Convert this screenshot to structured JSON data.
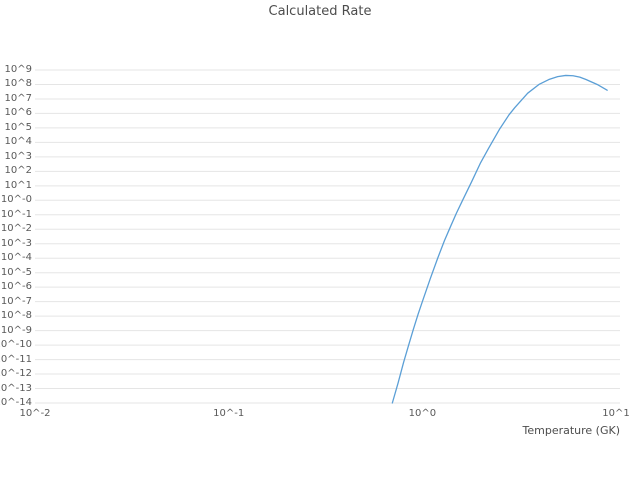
{
  "title": "Calculated Rate",
  "colors": {
    "line": "#5b9fd6",
    "grid": "#e5e5e5",
    "text": "#595959",
    "background": "#ffffff"
  },
  "chart_data": {
    "type": "line",
    "title": "Calculated Rate",
    "xlabel": "Temperature (GK)",
    "ylabel": "",
    "x_scale": "log",
    "y_scale": "log",
    "xlim": [
      0.01,
      10
    ],
    "ylim": [
      1e-14,
      1000000000.0
    ],
    "grid": "horizontal",
    "legend": "none",
    "x_tick_labels": [
      "10^-2",
      "10^-1",
      "10^0",
      "10^1"
    ],
    "y_tick_labels": [
      "10^9",
      "10^8",
      "10^7",
      "10^6",
      "10^5",
      "10^4",
      "10^3",
      "10^2",
      "10^1",
      "10^-0",
      "10^-1",
      "10^-2",
      "10^-3",
      "10^-4",
      "10^-5",
      "10^-6",
      "10^-7",
      "10^-8",
      "10^-9",
      "10^-10",
      "10^-11",
      "10^-12",
      "10^-13",
      "10^-14"
    ],
    "series": [
      {
        "name": "calculated-rate",
        "x": [
          0.7,
          0.75,
          0.8,
          0.85,
          0.9,
          0.95,
          1.0,
          1.1,
          1.2,
          1.3,
          1.4,
          1.5,
          1.6,
          1.8,
          2.0,
          2.2,
          2.5,
          2.8,
          3.0,
          3.5,
          4.0,
          4.5,
          5.0,
          5.5,
          6.0,
          6.5,
          7.0,
          8.0,
          9.0
        ],
        "y": [
          1e-14,
          2.5e-13,
          6.3e-12,
          1e-10,
          1.3e-09,
          1.3e-08,
          1e-07,
          4e-06,
          0.0001,
          0.0016,
          0.016,
          0.13,
          0.79,
          20.0,
          400.0,
          4000.0,
          79000.0,
          790000.0,
          2500000.0,
          25000000.0,
          100000000.0,
          220000000.0,
          350000000.0,
          420000000.0,
          400000000.0,
          320000000.0,
          220000000.0,
          100000000.0,
          40000000.0
        ]
      }
    ]
  }
}
